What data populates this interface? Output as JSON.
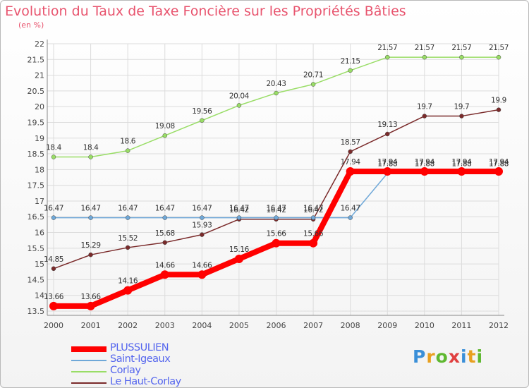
{
  "chart_data": {
    "type": "line",
    "title": "Evolution du Taux de Taxe Foncière sur les Propriétés Bâties",
    "unit_label": "(en %)",
    "categories": [
      "2000",
      "2001",
      "2002",
      "2003",
      "2004",
      "2005",
      "2006",
      "2007",
      "2008",
      "2009",
      "2010",
      "2011",
      "2012"
    ],
    "ylim": [
      13.5,
      22
    ],
    "yticks": [
      "13.5",
      "14",
      "14.5",
      "15",
      "15.5",
      "16",
      "16.5",
      "17",
      "17.5",
      "18",
      "18.5",
      "19",
      "19.5",
      "20",
      "20.5",
      "21",
      "21.5",
      "22"
    ],
    "grid": true,
    "series": [
      {
        "name": "Corlay",
        "color": "#99dd66",
        "values": [
          18.4,
          18.4,
          18.6,
          19.08,
          19.56,
          20.04,
          20.43,
          20.71,
          21.15,
          21.57,
          21.57,
          21.57,
          21.57
        ],
        "labels": [
          "18.4",
          "18.4",
          "18.6",
          "19.08",
          "19.56",
          "20.04",
          "20.43",
          "20.71",
          "21.15",
          "21.57",
          "21.57",
          "21.57",
          "21.57"
        ]
      },
      {
        "name": "Le Haut-Corlay",
        "color": "#7a2a2a",
        "values": [
          14.85,
          15.29,
          15.52,
          15.68,
          15.93,
          16.42,
          16.42,
          16.42,
          18.57,
          19.13,
          19.7,
          19.7,
          19.9
        ],
        "labels": [
          "14.85",
          "15.29",
          "15.52",
          "15.68",
          "15.93",
          "16.42",
          "16.42",
          "16.42",
          "18.57",
          "19.13",
          "19.7",
          "19.7",
          "19.9"
        ]
      },
      {
        "name": "Saint-Igeaux",
        "color": "#6fa8d8",
        "values": [
          16.47,
          16.47,
          16.47,
          16.47,
          16.47,
          16.47,
          16.47,
          16.47,
          16.47,
          17.88,
          17.88,
          17.88,
          17.88
        ],
        "labels": [
          "16.47",
          "16.47",
          "16.47",
          "16.47",
          "16.47",
          "16.47",
          "16.47",
          "16.47",
          "16.47",
          "17.88",
          "17.88",
          "17.88",
          "17.88"
        ]
      },
      {
        "name": "PLUSSULIEN",
        "color": "#ff0000",
        "values": [
          13.66,
          13.66,
          14.16,
          14.66,
          14.66,
          15.16,
          15.66,
          15.66,
          17.94,
          17.94,
          17.94,
          17.94,
          17.94
        ],
        "labels": [
          "13.66",
          "13.66",
          "14.16",
          "14.66",
          "14.66",
          "15.16",
          "15.66",
          "15.66",
          "17.94",
          "17.94",
          "17.94",
          "17.94",
          "17.94"
        ]
      }
    ]
  },
  "legend": [
    {
      "name": "PLUSSULIEN",
      "color": "#ff0000",
      "text_color": "#5566ee"
    },
    {
      "name": "Saint-Igeaux",
      "color": "#6fa8d8",
      "text_color": "#5566ee"
    },
    {
      "name": "Corlay",
      "color": "#99dd66",
      "text_color": "#5566ee"
    },
    {
      "name": "Le Haut-Corlay",
      "color": "#7a2a2a",
      "text_color": "#5566ee"
    }
  ],
  "logo": {
    "letters": [
      "P",
      "r",
      "o",
      "x",
      "i",
      "t",
      "i"
    ],
    "colors": [
      "#3a8fd8",
      "#e8a020",
      "#5fb830",
      "#e04040",
      "#3a8fd8",
      "#e8a020",
      "#5fb830"
    ]
  }
}
